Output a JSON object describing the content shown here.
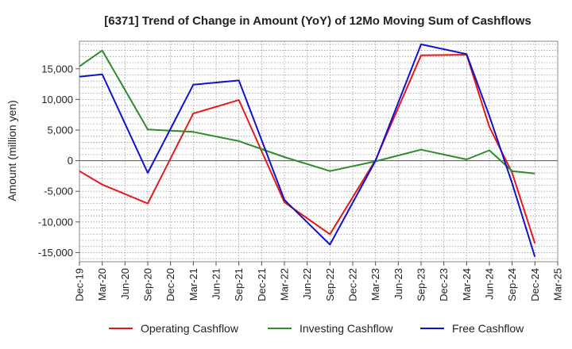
{
  "chart_data": {
    "type": "line",
    "title": "[6371]  Trend of Change in Amount (YoY) of 12Mo Moving Sum of Cashflows",
    "xlabel": "",
    "ylabel": "Amount (million yen)",
    "ylim": [
      -16500,
      19500
    ],
    "yticks": [
      -15000,
      -10000,
      -5000,
      0,
      5000,
      10000,
      15000
    ],
    "ytick_labels": [
      "-15,000",
      "-10,000",
      "-5,000",
      "0",
      "5,000",
      "10,000",
      "15,000"
    ],
    "grid": true,
    "legend_position": "bottom",
    "categories": [
      "Dec-19",
      "Mar-20",
      "Jun-20",
      "Sep-20",
      "Dec-20",
      "Mar-21",
      "Jun-21",
      "Sep-21",
      "Dec-21",
      "Mar-22",
      "Jun-22",
      "Sep-22",
      "Dec-22",
      "Mar-23",
      "Jun-23",
      "Sep-23",
      "Dec-23",
      "Mar-24",
      "Jun-24",
      "Sep-24",
      "Dec-24",
      "Mar-25"
    ],
    "series": [
      {
        "name": "Operating Cashflow",
        "color": "#e31a1c",
        "values": [
          -1700,
          -3900,
          null,
          -7000,
          null,
          7700,
          null,
          9900,
          null,
          -6800,
          null,
          -12000,
          null,
          100,
          null,
          17200,
          null,
          17300,
          5500,
          -2000,
          -13500,
          null
        ]
      },
      {
        "name": "Investing Cashflow",
        "color": "#2e8b2e",
        "values": [
          15400,
          18000,
          null,
          5100,
          null,
          4700,
          null,
          3200,
          null,
          600,
          null,
          -1700,
          null,
          -100,
          null,
          1800,
          null,
          200,
          1700,
          -1700,
          -2100,
          null
        ]
      },
      {
        "name": "Free Cashflow",
        "color": "#1111cc",
        "values": [
          13700,
          14100,
          null,
          -2000,
          null,
          12400,
          null,
          13100,
          null,
          -6400,
          null,
          -13700,
          null,
          0,
          null,
          19000,
          null,
          17400,
          7300,
          -3700,
          -15700,
          null
        ]
      }
    ]
  }
}
